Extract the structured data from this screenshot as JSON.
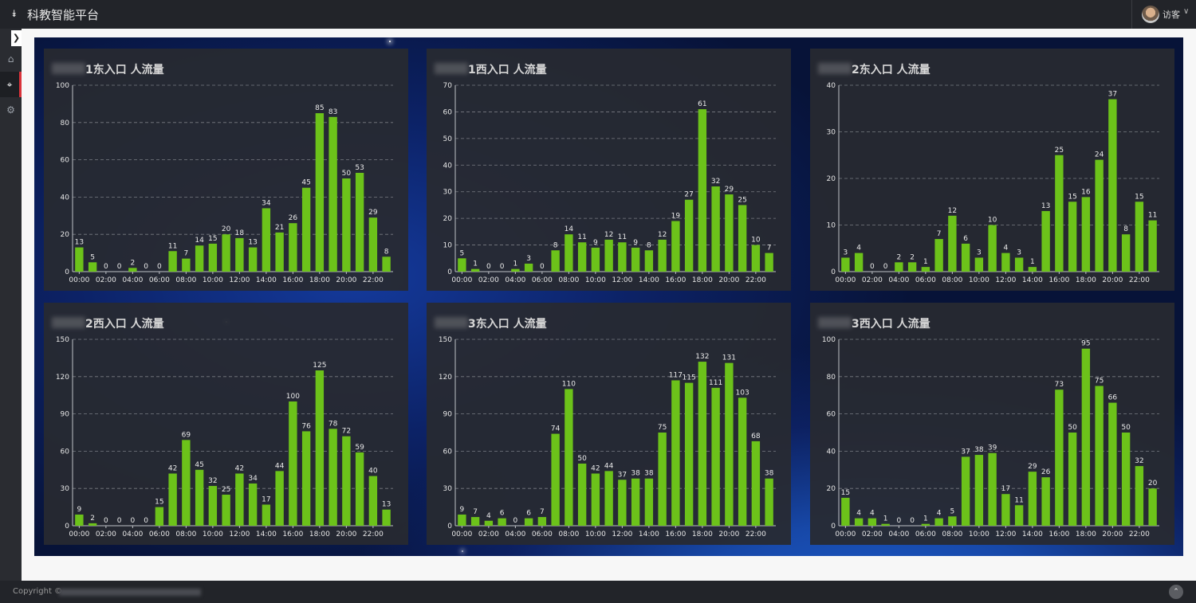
{
  "header": {
    "title": "科教智能平台",
    "user_name": "访客",
    "menu_icon": "double-chevron-down-icon",
    "caret_icon": "chevron-down-icon"
  },
  "sidebar": {
    "collapse_icon": "chevron-right-icon",
    "items": [
      {
        "name": "home",
        "icon": "home-icon"
      },
      {
        "name": "location",
        "icon": "map-marker-icon",
        "active": true
      },
      {
        "name": "settings",
        "icon": "gears-icon"
      }
    ]
  },
  "footer": {
    "copyright": "Copyright ©"
  },
  "colors": {
    "bar": "#6cc21a",
    "accent": "#d9323a"
  },
  "chart_data": [
    {
      "type": "bar",
      "title": "1东入口 人流量",
      "ylim": [
        0,
        100
      ],
      "yticks": [
        0,
        20,
        40,
        60,
        80,
        100
      ],
      "categories": [
        "00:00",
        "01:00",
        "02:00",
        "03:00",
        "04:00",
        "05:00",
        "06:00",
        "07:00",
        "08:00",
        "09:00",
        "10:00",
        "11:00",
        "12:00",
        "13:00",
        "14:00",
        "15:00",
        "16:00",
        "17:00",
        "18:00",
        "19:00",
        "20:00",
        "21:00",
        "22:00",
        "23:00"
      ],
      "tick_labels": [
        "00:00",
        "02:00",
        "04:00",
        "06:00",
        "08:00",
        "10:00",
        "12:00",
        "14:00",
        "16:00",
        "18:00",
        "20:00",
        "22:00"
      ],
      "values": [
        13,
        5,
        0,
        0,
        2,
        0,
        0,
        11,
        7,
        14,
        15,
        20,
        18,
        13,
        34,
        21,
        26,
        45,
        85,
        83,
        50,
        53,
        29,
        8
      ],
      "grid": true
    },
    {
      "type": "bar",
      "title": "1西入口 人流量",
      "ylim": [
        0,
        70
      ],
      "yticks": [
        0,
        10,
        20,
        30,
        40,
        50,
        60,
        70
      ],
      "categories": [
        "00:00",
        "01:00",
        "02:00",
        "03:00",
        "04:00",
        "05:00",
        "06:00",
        "07:00",
        "08:00",
        "09:00",
        "10:00",
        "11:00",
        "12:00",
        "13:00",
        "14:00",
        "15:00",
        "16:00",
        "17:00",
        "18:00",
        "19:00",
        "20:00",
        "21:00",
        "22:00",
        "23:00"
      ],
      "tick_labels": [
        "00:00",
        "02:00",
        "04:00",
        "06:00",
        "08:00",
        "10:00",
        "12:00",
        "14:00",
        "16:00",
        "18:00",
        "20:00",
        "22:00"
      ],
      "values": [
        5,
        1,
        0,
        0,
        1,
        3,
        0,
        8,
        14,
        11,
        9,
        12,
        11,
        9,
        8,
        12,
        19,
        27,
        61,
        32,
        29,
        25,
        10,
        7
      ],
      "grid": true
    },
    {
      "type": "bar",
      "title": "2东入口 人流量",
      "ylim": [
        0,
        40
      ],
      "yticks": [
        0,
        10,
        20,
        30,
        40
      ],
      "categories": [
        "00:00",
        "01:00",
        "02:00",
        "03:00",
        "04:00",
        "05:00",
        "06:00",
        "07:00",
        "08:00",
        "09:00",
        "10:00",
        "11:00",
        "12:00",
        "13:00",
        "14:00",
        "15:00",
        "16:00",
        "17:00",
        "18:00",
        "19:00",
        "20:00",
        "21:00",
        "22:00",
        "23:00"
      ],
      "tick_labels": [
        "00:00",
        "02:00",
        "04:00",
        "06:00",
        "08:00",
        "10:00",
        "12:00",
        "14:00",
        "16:00",
        "18:00",
        "20:00",
        "22:00"
      ],
      "values": [
        3,
        4,
        0,
        0,
        2,
        2,
        1,
        7,
        12,
        6,
        3,
        10,
        4,
        3,
        1,
        13,
        25,
        15,
        16,
        24,
        37,
        8,
        15,
        11
      ],
      "grid": true
    },
    {
      "type": "bar",
      "title": "2西入口 人流量",
      "ylim": [
        0,
        150
      ],
      "yticks": [
        0,
        30,
        60,
        90,
        120,
        150
      ],
      "categories": [
        "00:00",
        "01:00",
        "02:00",
        "03:00",
        "04:00",
        "05:00",
        "06:00",
        "07:00",
        "08:00",
        "09:00",
        "10:00",
        "11:00",
        "12:00",
        "13:00",
        "14:00",
        "15:00",
        "16:00",
        "17:00",
        "18:00",
        "19:00",
        "20:00",
        "21:00",
        "22:00",
        "23:00"
      ],
      "tick_labels": [
        "00:00",
        "02:00",
        "04:00",
        "06:00",
        "08:00",
        "10:00",
        "12:00",
        "14:00",
        "16:00",
        "18:00",
        "20:00",
        "22:00"
      ],
      "values": [
        9,
        2,
        0,
        0,
        0,
        0,
        15,
        42,
        69,
        45,
        32,
        25,
        42,
        34,
        17,
        44,
        100,
        76,
        125,
        78,
        72,
        59,
        40,
        13
      ],
      "grid": true
    },
    {
      "type": "bar",
      "title": "3东入口 人流量",
      "ylim": [
        0,
        150
      ],
      "yticks": [
        0,
        30,
        60,
        90,
        120,
        150
      ],
      "categories": [
        "00:00",
        "01:00",
        "02:00",
        "03:00",
        "04:00",
        "05:00",
        "06:00",
        "07:00",
        "08:00",
        "09:00",
        "10:00",
        "11:00",
        "12:00",
        "13:00",
        "14:00",
        "15:00",
        "16:00",
        "17:00",
        "18:00",
        "19:00",
        "20:00",
        "21:00",
        "22:00",
        "23:00"
      ],
      "tick_labels": [
        "00:00",
        "02:00",
        "04:00",
        "06:00",
        "08:00",
        "10:00",
        "12:00",
        "14:00",
        "16:00",
        "18:00",
        "20:00",
        "22:00"
      ],
      "values": [
        9,
        7,
        4,
        6,
        0,
        6,
        7,
        74,
        110,
        50,
        42,
        44,
        37,
        38,
        38,
        75,
        117,
        115,
        132,
        111,
        131,
        103,
        68,
        38
      ],
      "grid": true
    },
    {
      "type": "bar",
      "title": "3西入口 人流量",
      "ylim": [
        0,
        100
      ],
      "yticks": [
        0,
        20,
        40,
        60,
        80,
        100
      ],
      "categories": [
        "00:00",
        "01:00",
        "02:00",
        "03:00",
        "04:00",
        "05:00",
        "06:00",
        "07:00",
        "08:00",
        "09:00",
        "10:00",
        "11:00",
        "12:00",
        "13:00",
        "14:00",
        "15:00",
        "16:00",
        "17:00",
        "18:00",
        "19:00",
        "20:00",
        "21:00",
        "22:00",
        "23:00"
      ],
      "tick_labels": [
        "00:00",
        "02:00",
        "04:00",
        "06:00",
        "08:00",
        "10:00",
        "12:00",
        "14:00",
        "16:00",
        "18:00",
        "20:00",
        "22:00"
      ],
      "values": [
        15,
        4,
        4,
        1,
        0,
        0,
        1,
        4,
        5,
        37,
        38,
        39,
        17,
        11,
        29,
        26,
        73,
        50,
        95,
        75,
        66,
        50,
        32,
        20
      ],
      "grid": true
    }
  ]
}
